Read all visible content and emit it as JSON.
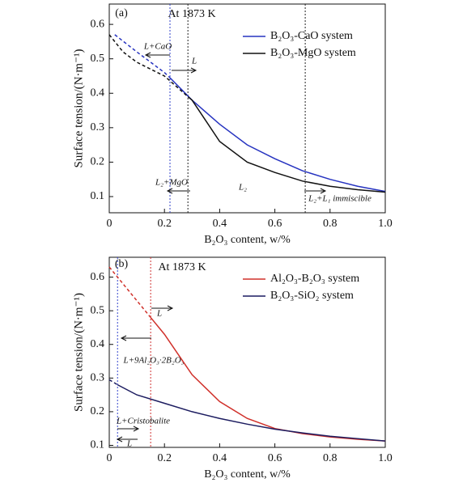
{
  "chart_data": [
    {
      "type": "line",
      "panel": "(a)",
      "title": "At 1873 K",
      "xlabel": "B₂O₃ content, w/%",
      "ylabel": "Surface tension/(N·m⁻¹)",
      "xlim": [
        0,
        1
      ],
      "ylim": [
        0.053,
        0.659
      ],
      "xticks": [
        0,
        0.2,
        0.4,
        0.6,
        0.8,
        {
          "value": 1,
          "label": "1.0"
        }
      ],
      "yticks": [
        0.1,
        0.2,
        0.3,
        0.4,
        0.5,
        0.6
      ],
      "vlines": [
        {
          "x": 0.22,
          "color": "#3344cc"
        },
        {
          "x": 0.285,
          "color": "#222222"
        },
        {
          "x": 0.71,
          "color": "#222222"
        }
      ],
      "annotations": [
        "L+CaO",
        "L",
        "L₂+MgO",
        "L₂",
        "L₂+L₁ immiscible"
      ],
      "series": [
        {
          "name": "B₂O₃-CaO system",
          "color": "#2633c0",
          "dashed_below": 0.22,
          "x": [
            0.02,
            0.1,
            0.2,
            0.22,
            0.3,
            0.4,
            0.5,
            0.6,
            0.7,
            0.8,
            0.9,
            1.0
          ],
          "values": [
            0.57,
            0.52,
            0.46,
            0.445,
            0.38,
            0.31,
            0.25,
            0.21,
            0.175,
            0.15,
            0.13,
            0.115
          ]
        },
        {
          "name": "B₂O₃-MgO system",
          "color": "#111111",
          "dashed_below": 0.285,
          "x": [
            0,
            0.05,
            0.1,
            0.2,
            0.285,
            0.3,
            0.35,
            0.4,
            0.5,
            0.6,
            0.7,
            0.8,
            0.9,
            1.0
          ],
          "values": [
            0.57,
            0.52,
            0.49,
            0.45,
            0.39,
            0.38,
            0.32,
            0.26,
            0.2,
            0.17,
            0.145,
            0.13,
            0.12,
            0.113
          ]
        }
      ]
    },
    {
      "type": "line",
      "panel": "(b)",
      "title": "At 1873 K",
      "xlabel": "B₂O₃ content, w/%",
      "ylabel": "Surface tension/(N·m⁻¹)",
      "xlim": [
        0,
        1
      ],
      "ylim": [
        0.094,
        0.659
      ],
      "xticks": [
        0,
        0.2,
        0.4,
        0.6,
        0.8,
        {
          "value": 1,
          "label": "1.0"
        }
      ],
      "yticks": [
        0.1,
        0.2,
        0.3,
        0.4,
        0.5,
        0.6
      ],
      "vlines": [
        {
          "x": 0.03,
          "color": "#3344cc"
        },
        {
          "x": 0.15,
          "color": "#d03030"
        }
      ],
      "annotations": [
        "L",
        "L+9Al₂O₃·2B₂O₃",
        "L+Cristobalite",
        "L"
      ],
      "series": [
        {
          "name": "Al₂O₃-B₂O₃ system",
          "color": "#d0302a",
          "dashed_below": 0.15,
          "x": [
            0,
            0.05,
            0.1,
            0.15,
            0.2,
            0.25,
            0.3,
            0.4,
            0.5,
            0.6,
            0.7,
            0.8,
            0.9,
            1.0
          ],
          "values": [
            0.63,
            0.58,
            0.53,
            0.48,
            0.43,
            0.37,
            0.31,
            0.23,
            0.18,
            0.15,
            0.135,
            0.125,
            0.118,
            0.113
          ]
        },
        {
          "name": "B₂O₃-SiO₂ system",
          "color": "#1c1c60",
          "dashed_below": 0.03,
          "x": [
            0,
            0.03,
            0.1,
            0.2,
            0.3,
            0.4,
            0.5,
            0.6,
            0.7,
            0.8,
            0.9,
            1.0
          ],
          "values": [
            0.295,
            0.28,
            0.25,
            0.225,
            0.2,
            0.18,
            0.163,
            0.148,
            0.137,
            0.127,
            0.12,
            0.113
          ]
        }
      ]
    }
  ]
}
